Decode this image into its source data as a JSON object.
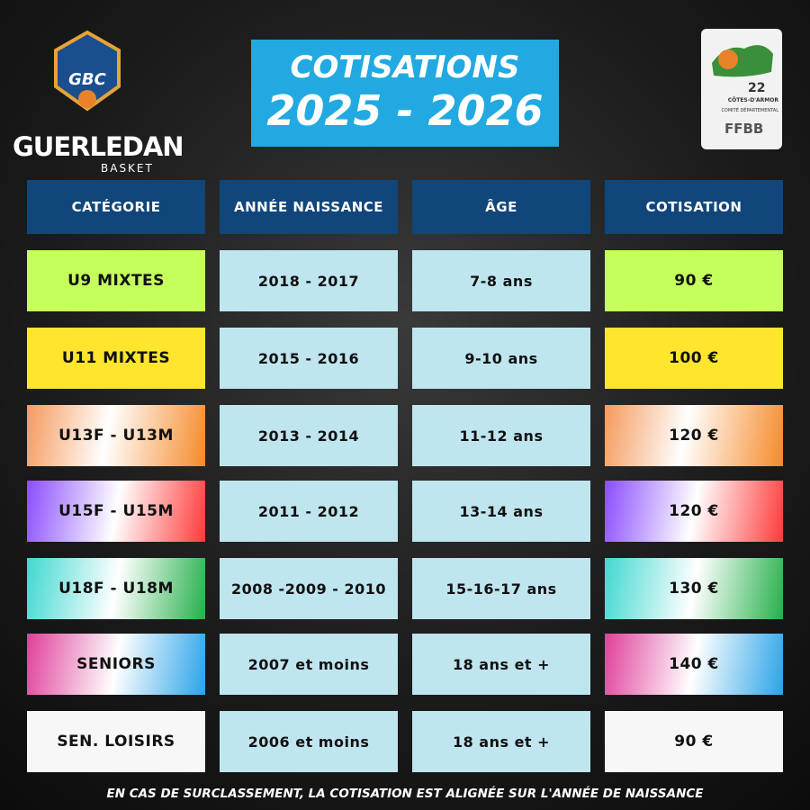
{
  "header": {
    "title_line1": "COTISATIONS",
    "title_line2": "2025 - 2026",
    "club_logo": {
      "initials": "GBC",
      "name": "GUERLEDAN",
      "subname": "BASKET"
    },
    "committee_logo": {
      "number": "22",
      "region": "CÔTES-D'ARMOR",
      "committee": "COMITÉ DÉPARTEMENTAL",
      "federation": "FFBB"
    }
  },
  "table": {
    "columns": [
      "CATÉGORIE",
      "ANNÉE NAISSANCE",
      "ÂGE",
      "COTISATION"
    ],
    "rows": [
      [
        "U9 MIXTES",
        "2018 - 2017",
        "7-8 ans",
        "90 €"
      ],
      [
        "U11 MIXTES",
        "2015 - 2016",
        "9-10 ans",
        "100 €"
      ],
      [
        "U13F - U13M",
        "2013 - 2014",
        "11-12 ans",
        "120 €"
      ],
      [
        "U15F - U15M",
        "2011 - 2012",
        "13-14 ans",
        "120 €"
      ],
      [
        "U18F - U18M",
        "2008 -2009 - 2010",
        "15-16-17 ans",
        "130 €"
      ],
      [
        "SENIORS",
        "2007 et moins",
        "18 ans et +",
        "140 €"
      ],
      [
        "SEN. LOISIRS",
        "2006 et moins",
        "18 ans et +",
        "90 €"
      ]
    ]
  },
  "footer": "EN CAS DE SURCLASSEMENT, LA COTISATION EST ALIGNÉE SUR L'ANNÉE DE NAISSANCE"
}
